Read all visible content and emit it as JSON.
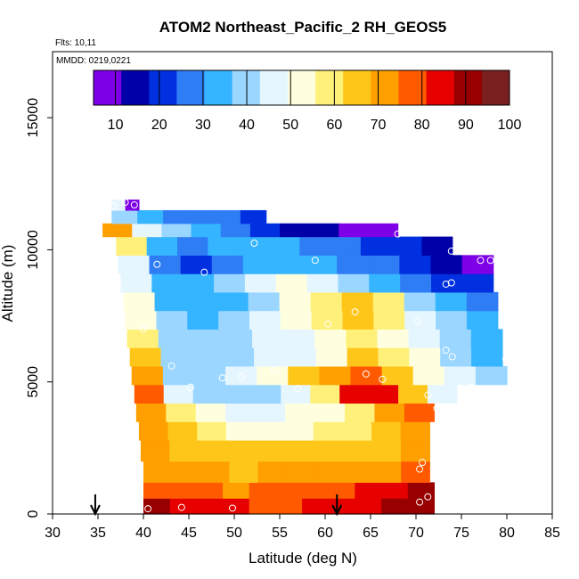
{
  "colors": {
    "scale": [
      "#7d00e6",
      "#0000a8",
      "#0030e0",
      "#2f7df5",
      "#35b4ff",
      "#9ad6ff",
      "#e6f6ff",
      "#ffffe0",
      "#fff07a",
      "#ffc61a",
      "#ff9f00",
      "#ff5a00",
      "#e60000",
      "#980000",
      "#7a2020"
    ]
  },
  "chart_data": {
    "type": "heatmap",
    "title": "ATOM2 Northeast_Pacific_2 RH_GEOS5",
    "flights_label": "Flts: 10,11",
    "mmdd_label": "MMDD: 0219,0221",
    "xlabel": "Latitude (deg N)",
    "ylabel": "Altitude (m)",
    "xlim": [
      30,
      85
    ],
    "ylim": [
      0,
      17500
    ],
    "xticks": [
      "30",
      "35",
      "40",
      "45",
      "50",
      "55",
      "60",
      "65",
      "70",
      "75",
      "80",
      "85"
    ],
    "yticks": [
      "0",
      "5000",
      "10000",
      "15000"
    ],
    "colorbar": {
      "min": 5,
      "max": 100,
      "ticks": [
        "10",
        "20",
        "30",
        "40",
        "50",
        "60",
        "70",
        "80",
        "90",
        "100"
      ]
    },
    "arrows_lat": [
      34.7,
      61.3
    ],
    "layers": [
      {
        "alt_min": 0,
        "alt_max": 600,
        "lat_min": 40,
        "lat_max": 72,
        "rh": [
          88,
          85,
          84,
          82,
          80,
          80,
          82,
          84,
          86,
          90,
          93
        ]
      },
      {
        "alt_min": 600,
        "alt_max": 1200,
        "lat_min": 40,
        "lat_max": 72,
        "rh": [
          78,
          76,
          75,
          74,
          75,
          76,
          78,
          80,
          83,
          86,
          89
        ]
      },
      {
        "alt_min": 1200,
        "alt_max": 2000,
        "lat_min": 40,
        "lat_max": 71.5,
        "rh": [
          72,
          70,
          69,
          68,
          69,
          70,
          71,
          72,
          73,
          75
        ]
      },
      {
        "alt_min": 2000,
        "alt_max": 2800,
        "lat_min": 39.7,
        "lat_max": 71.5,
        "rh": [
          70,
          66,
          64,
          63,
          62,
          63,
          64,
          66,
          68,
          72
        ]
      },
      {
        "alt_min": 2800,
        "alt_max": 3500,
        "lat_min": 39.5,
        "lat_max": 71.5,
        "rh": [
          72,
          62,
          56,
          54,
          53,
          54,
          56,
          60,
          66,
          74
        ]
      },
      {
        "alt_min": 3500,
        "alt_max": 4200,
        "lat_min": 39.2,
        "lat_max": 72,
        "rh": [
          74,
          58,
          50,
          48,
          48,
          50,
          54,
          60,
          70,
          78
        ]
      },
      {
        "alt_min": 4200,
        "alt_max": 4900,
        "lat_min": 39,
        "lat_max": 74.5,
        "rh": [
          76,
          48,
          40,
          38,
          42,
          48,
          60,
          82,
          86,
          62,
          44
        ]
      },
      {
        "alt_min": 4900,
        "alt_max": 5600,
        "lat_min": 38.7,
        "lat_max": 80,
        "rh": [
          70,
          42,
          40,
          44,
          52,
          62,
          74,
          80,
          66,
          54,
          44,
          38
        ]
      },
      {
        "alt_min": 5600,
        "alt_max": 6300,
        "lat_min": 38.5,
        "lat_max": 79.5,
        "rh": [
          62,
          40,
          38,
          40,
          44,
          48,
          54,
          62,
          60,
          50,
          42,
          36
        ]
      },
      {
        "alt_min": 6300,
        "alt_max": 7000,
        "lat_min": 38.2,
        "lat_max": 79.5,
        "rh": [
          56,
          40,
          38,
          40,
          44,
          48,
          52,
          56,
          54,
          46,
          40,
          36
        ]
      },
      {
        "alt_min": 7000,
        "alt_max": 7700,
        "lat_min": 38,
        "lat_max": 79,
        "rh": [
          52,
          38,
          36,
          38,
          44,
          50,
          56,
          62,
          56,
          44,
          38,
          32
        ]
      },
      {
        "alt_min": 7700,
        "alt_max": 8400,
        "lat_min": 37.8,
        "lat_max": 79,
        "rh": [
          50,
          36,
          34,
          36,
          42,
          50,
          60,
          66,
          58,
          42,
          32,
          26
        ]
      },
      {
        "alt_min": 8400,
        "alt_max": 9100,
        "lat_min": 37.5,
        "lat_max": 78.5,
        "rh": [
          48,
          34,
          36,
          42,
          48,
          52,
          48,
          42,
          36,
          30,
          22,
          18
        ]
      },
      {
        "alt_min": 9100,
        "alt_max": 9800,
        "lat_min": 37.2,
        "lat_max": 78.5,
        "rh": [
          46,
          24,
          18,
          24,
          32,
          36,
          34,
          30,
          24,
          20,
          14,
          10
        ]
      },
      {
        "alt_min": 9800,
        "alt_max": 10500,
        "lat_min": 37,
        "lat_max": 74,
        "rh": [
          56,
          34,
          30,
          34,
          36,
          34,
          30,
          26,
          22,
          18,
          14
        ]
      },
      {
        "alt_min": 10500,
        "alt_max": 11000,
        "lat_min": 35.5,
        "lat_max": 68,
        "rh": [
          74,
          44,
          38,
          32,
          26,
          20,
          16,
          12,
          8,
          5
        ]
      },
      {
        "alt_min": 11000,
        "alt_max": 11500,
        "lat_min": 36.5,
        "lat_max": 53.5,
        "rh": [
          42,
          34,
          30,
          28,
          26,
          22
        ]
      },
      {
        "alt_min": 11500,
        "alt_max": 11900,
        "lat_min": 36.5,
        "lat_max": 39.5,
        "rh": [
          44,
          6
        ]
      }
    ],
    "observations": [
      {
        "lat": 40.5,
        "alt": 200
      },
      {
        "lat": 44.2,
        "alt": 250
      },
      {
        "lat": 49.8,
        "alt": 220
      },
      {
        "lat": 70.4,
        "alt": 450
      },
      {
        "lat": 71.3,
        "alt": 650
      },
      {
        "lat": 70.4,
        "alt": 1700
      },
      {
        "lat": 70.7,
        "alt": 1950
      },
      {
        "lat": 72.3,
        "alt": 4000
      },
      {
        "lat": 71.3,
        "alt": 4500
      },
      {
        "lat": 45.2,
        "alt": 4800
      },
      {
        "lat": 48.7,
        "alt": 5150
      },
      {
        "lat": 50.8,
        "alt": 5200
      },
      {
        "lat": 54.4,
        "alt": 5450
      },
      {
        "lat": 57.0,
        "alt": 4750
      },
      {
        "lat": 64.5,
        "alt": 5300
      },
      {
        "lat": 66.3,
        "alt": 5100
      },
      {
        "lat": 76.0,
        "alt": 4800
      },
      {
        "lat": 79.9,
        "alt": 5850
      },
      {
        "lat": 43.1,
        "alt": 5600
      },
      {
        "lat": 74.0,
        "alt": 5950
      },
      {
        "lat": 73.3,
        "alt": 6200
      },
      {
        "lat": 40.0,
        "alt": 7000
      },
      {
        "lat": 60.3,
        "alt": 7200
      },
      {
        "lat": 70.2,
        "alt": 7300
      },
      {
        "lat": 63.3,
        "alt": 7650
      },
      {
        "lat": 73.9,
        "alt": 8750
      },
      {
        "lat": 73.3,
        "alt": 8700
      },
      {
        "lat": 46.7,
        "alt": 9150
      },
      {
        "lat": 41.5,
        "alt": 9450
      },
      {
        "lat": 58.9,
        "alt": 9600
      },
      {
        "lat": 77.1,
        "alt": 9600
      },
      {
        "lat": 78.2,
        "alt": 9600
      },
      {
        "lat": 73.9,
        "alt": 9950
      },
      {
        "lat": 52.2,
        "alt": 10250
      },
      {
        "lat": 68.0,
        "alt": 10600
      },
      {
        "lat": 36.7,
        "alt": 11650
      },
      {
        "lat": 38.0,
        "alt": 11800
      },
      {
        "lat": 39.0,
        "alt": 11700
      }
    ]
  }
}
